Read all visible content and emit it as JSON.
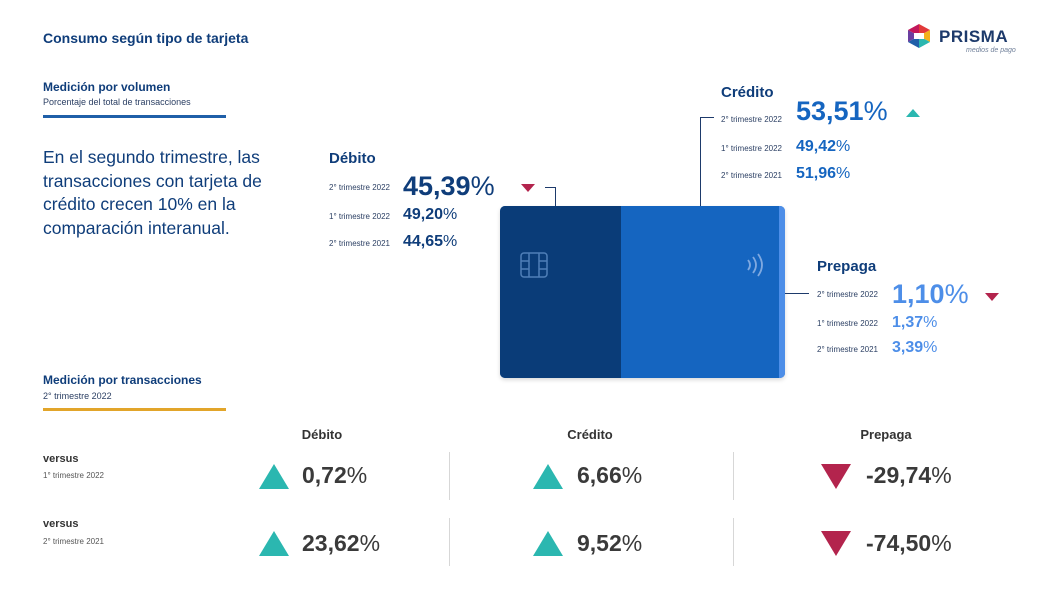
{
  "page_title": "Consumo según tipo de tarjeta",
  "logo": {
    "name": "PRISMA",
    "tagline": "medios de pago"
  },
  "colors": {
    "navy": "#0f3d7a",
    "card_dark": "#0a3c78",
    "card_main": "#1565c0",
    "prepaga": "#4d8ee8",
    "up": "#2bb7b0",
    "down": "#b3244d",
    "rule_blue": "#1f5fa8",
    "rule_gold": "#e2a52a"
  },
  "volume": {
    "title": "Medición por volumen",
    "subtitle": "Porcentaje del total de transacciones",
    "lead": "En el segundo trimestre, las transacciones con tarjeta de crédito crecen 10% en la comparación interanual.",
    "debito": {
      "title": "Débito",
      "rows": [
        {
          "label": "2° trimestre 2022",
          "value": "45,39",
          "unit": "%"
        },
        {
          "label": "1° trimestre 2022",
          "value": "49,20",
          "unit": "%"
        },
        {
          "label": "2° trimestre 2021",
          "value": "44,65",
          "unit": "%"
        }
      ],
      "trend": "down"
    },
    "credito": {
      "title": "Crédito",
      "rows": [
        {
          "label": "2° trimestre 2022",
          "value": "53,51",
          "unit": "%"
        },
        {
          "label": "1° trimestre 2022",
          "value": "49,42",
          "unit": "%"
        },
        {
          "label": "2° trimestre 2021",
          "value": "51,96",
          "unit": "%"
        }
      ],
      "trend": "up"
    },
    "prepaga": {
      "title": "Prepaga",
      "rows": [
        {
          "label": "2° trimestre 2022",
          "value": "1,10",
          "unit": "%"
        },
        {
          "label": "1° trimestre 2022",
          "value": "1,37",
          "unit": "%"
        },
        {
          "label": "2° trimestre 2021",
          "value": "3,39",
          "unit": "%"
        }
      ],
      "trend": "down"
    }
  },
  "transactions": {
    "title": "Medición por transacciones",
    "subtitle": "2° trimestre 2022",
    "columns": [
      "Débito",
      "Crédito",
      "Prepaga"
    ],
    "rows": [
      {
        "title": "versus",
        "sub": "1° trimestre 2022",
        "values": [
          {
            "value": "0,72",
            "unit": "%",
            "trend": "up"
          },
          {
            "value": "6,66",
            "unit": "%",
            "trend": "up"
          },
          {
            "value": "-29,74",
            "unit": "%",
            "trend": "down"
          }
        ]
      },
      {
        "title": "versus",
        "sub": "2° trimestre 2021",
        "values": [
          {
            "value": "23,62",
            "unit": "%",
            "trend": "up"
          },
          {
            "value": "9,52",
            "unit": "%",
            "trend": "up"
          },
          {
            "value": "-74,50",
            "unit": "%",
            "trend": "down"
          }
        ]
      }
    ]
  }
}
